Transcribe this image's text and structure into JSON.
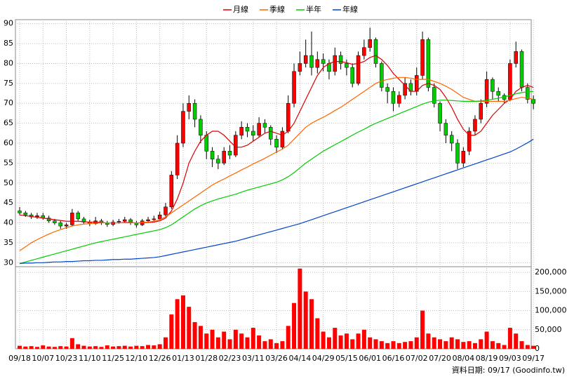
{
  "chart_data": [
    {
      "type": "candlestick",
      "legend": "top",
      "grid": true,
      "up_color": "#ff0000",
      "down_color": "#00cc00",
      "categories": [
        "09/18",
        null,
        null,
        null,
        "10/07",
        null,
        null,
        null,
        "10/23",
        null,
        null,
        null,
        "11/10",
        null,
        null,
        null,
        "11/25",
        null,
        null,
        null,
        "12/10",
        null,
        null,
        null,
        "12/26",
        null,
        null,
        null,
        "01/13",
        null,
        null,
        null,
        "01/28",
        null,
        null,
        null,
        "02/23",
        null,
        null,
        null,
        "03/11",
        null,
        null,
        null,
        "03/26",
        null,
        null,
        null,
        "04/14",
        null,
        null,
        null,
        "04/29",
        null,
        null,
        null,
        "05/15",
        null,
        null,
        null,
        "06/01",
        null,
        null,
        null,
        "06/16",
        null,
        null,
        null,
        "07/02",
        null,
        null,
        null,
        "07/20",
        null,
        null,
        null,
        "08/04",
        null,
        null,
        null,
        "08/19",
        null,
        null,
        null,
        "09/03",
        null,
        null,
        null,
        "09/17"
      ],
      "open": [
        43,
        42.5,
        42,
        41.5,
        41.8,
        41.2,
        40.5,
        40,
        39.2,
        39.5,
        42.5,
        41,
        40.2,
        39.8,
        40.5,
        40,
        39.6,
        40.2,
        40.4,
        40.8,
        40,
        39.5,
        40.5,
        40.8,
        41,
        42,
        44,
        52,
        60,
        68,
        70,
        66,
        62,
        58,
        56,
        55,
        58,
        57,
        62,
        64,
        63,
        62,
        65,
        64,
        61,
        59,
        63,
        70,
        78,
        80,
        82,
        79,
        81,
        80,
        78,
        82,
        80,
        79,
        75,
        82,
        84,
        86,
        80,
        74,
        73,
        70,
        72,
        75,
        73,
        77,
        86,
        74,
        70,
        65,
        62,
        60,
        55,
        58,
        63,
        66,
        70,
        76,
        73,
        72,
        71,
        80,
        83,
        74,
        71
      ],
      "high": [
        44,
        43,
        42.5,
        42.5,
        42.5,
        41.8,
        41,
        40.5,
        40,
        43.5,
        43,
        41.5,
        40.8,
        41.5,
        41,
        40.5,
        40.8,
        41,
        41.5,
        41.2,
        40.5,
        41,
        41.5,
        41.8,
        42.8,
        45,
        53,
        62,
        70,
        72,
        71,
        67,
        63,
        59,
        57,
        59,
        59.5,
        63,
        65.5,
        65,
        64.5,
        66.5,
        66,
        64.5,
        62,
        64,
        72,
        80,
        83,
        86,
        88,
        83,
        82.5,
        81,
        84,
        83,
        81,
        80,
        83,
        86,
        89,
        86.5,
        80.5,
        75,
        74,
        73,
        76.5,
        76,
        79,
        88,
        86.5,
        75,
        70.5,
        66,
        63,
        61,
        59,
        64,
        67,
        71,
        78,
        76.5,
        74,
        72.5,
        81,
        85.5,
        83.5,
        75,
        72
      ],
      "low": [
        42,
        41.5,
        41,
        41,
        40.8,
        40,
        39.5,
        38.5,
        38.5,
        39.2,
        40.5,
        39.8,
        39.2,
        39.5,
        39.5,
        39,
        39.2,
        39.8,
        40,
        39.5,
        38.8,
        39.2,
        40.2,
        40.5,
        40.8,
        41.5,
        43.5,
        51,
        59,
        66,
        64,
        60,
        56,
        54,
        53.5,
        54.5,
        56,
        56.5,
        61,
        61.5,
        60.5,
        61.5,
        62.5,
        59.5,
        57.5,
        58.5,
        62.5,
        69,
        77,
        79,
        77,
        77.5,
        78,
        76,
        77,
        78.5,
        77,
        74,
        74.5,
        81,
        83,
        79,
        73,
        70,
        68,
        69,
        71,
        72,
        72,
        76,
        73,
        69,
        63,
        60,
        58,
        53.5,
        54,
        57,
        62,
        65,
        69,
        71,
        70.5,
        70,
        70.5,
        79,
        73,
        70,
        68.5
      ],
      "close": [
        42.5,
        42,
        41.5,
        41.8,
        41.2,
        40.5,
        40,
        39.2,
        39.5,
        42.5,
        41,
        40.2,
        39.8,
        40.5,
        40,
        39.6,
        40.2,
        40.4,
        40.8,
        40,
        39.5,
        40.5,
        40.8,
        41,
        42,
        44,
        52,
        60,
        68,
        70,
        66,
        62,
        58,
        56,
        55,
        58,
        57,
        62,
        64,
        63,
        62,
        65,
        64,
        61,
        59,
        63,
        70,
        78,
        80,
        82,
        79,
        81,
        80,
        78,
        82,
        80,
        79,
        75,
        82,
        84,
        86,
        80,
        74,
        73,
        70,
        72,
        75,
        73,
        77,
        86,
        74,
        70,
        65,
        62,
        60,
        55,
        58,
        63,
        66,
        70,
        76,
        73,
        72,
        71,
        80,
        83,
        74,
        71,
        70
      ],
      "series": [
        {
          "name": "月線",
          "color": "#dd0000",
          "values": [
            42,
            41.8,
            41.6,
            41.4,
            41.2,
            41,
            40.8,
            40.6,
            40.4,
            40.4,
            40.4,
            40.3,
            40.2,
            40.2,
            40.1,
            40,
            40,
            40,
            40.1,
            40.1,
            40,
            40,
            40.1,
            40.2,
            40.5,
            41.2,
            43,
            46,
            50,
            55,
            58,
            60.5,
            62,
            63,
            63,
            62,
            60.5,
            59,
            59,
            59.5,
            60.5,
            61.5,
            62.5,
            63,
            62.5,
            62,
            63,
            65,
            68,
            71,
            74,
            77,
            79,
            80,
            80.5,
            80.5,
            80.2,
            79.8,
            80,
            80.5,
            81.5,
            82,
            81,
            79.5,
            77.5,
            76,
            74.5,
            73,
            73,
            74.5,
            75,
            74.5,
            73.5,
            71.5,
            69,
            66,
            63.5,
            62,
            62,
            63,
            65,
            67,
            68.5,
            70,
            71,
            73,
            74,
            74.5,
            74
          ]
        },
        {
          "name": "季線",
          "color": "#ff6600",
          "values": [
            33,
            34,
            35,
            35.8,
            36.5,
            37.2,
            37.8,
            38.3,
            38.8,
            39.2,
            39.5,
            39.7,
            39.8,
            39.9,
            40,
            40,
            40,
            40,
            40,
            40,
            40,
            40.1,
            40.2,
            40.4,
            40.8,
            41.5,
            42.5,
            43.5,
            44.5,
            45.5,
            46.5,
            47.5,
            48.5,
            49.5,
            50.3,
            51,
            51.8,
            52.5,
            53.3,
            54,
            54.8,
            55.5,
            56.2,
            57,
            57.8,
            58.5,
            59.5,
            61,
            62.5,
            64,
            65,
            65.8,
            66.5,
            67.3,
            68.2,
            69,
            70,
            71,
            72,
            73,
            74,
            75,
            75.6,
            76,
            76.3,
            76.5,
            76.5,
            76.3,
            76,
            76,
            76,
            75.5,
            75,
            74.3,
            73.5,
            72.5,
            71.5,
            71,
            70.5,
            70.5,
            70.5,
            70.5,
            70.5,
            70.5,
            70.8,
            71.2,
            71.5,
            71.3,
            71
          ]
        },
        {
          "name": "半年",
          "color": "#00cc00",
          "values": [
            29.8,
            30.2,
            30.6,
            31,
            31.4,
            31.8,
            32.2,
            32.6,
            33,
            33.4,
            33.8,
            34.2,
            34.6,
            35,
            35.3,
            35.6,
            35.9,
            36.2,
            36.5,
            36.8,
            37.1,
            37.4,
            37.7,
            38,
            38.3,
            38.8,
            39.5,
            40.5,
            41.5,
            42.5,
            43.5,
            44.3,
            45,
            45.5,
            46,
            46.4,
            46.8,
            47.2,
            47.7,
            48.2,
            48.6,
            49,
            49.4,
            49.8,
            50.2,
            50.8,
            51.6,
            52.6,
            53.8,
            55,
            56,
            57,
            58,
            58.8,
            59.6,
            60.4,
            61.2,
            62,
            62.8,
            63.5,
            64.3,
            65,
            65.6,
            66.2,
            66.8,
            67.4,
            68,
            68.6,
            69.2,
            69.8,
            70.3,
            70.6,
            70.8,
            70.8,
            70.7,
            70.6,
            70.5,
            70.5,
            70.5,
            70.6,
            70.8,
            71,
            71.3,
            71.6,
            72,
            72.4,
            72.7,
            72.9,
            73
          ]
        },
        {
          "name": "年線",
          "color": "#0044cc",
          "values": [
            29.8,
            29.9,
            29.9,
            30,
            30,
            30.1,
            30.2,
            30.2,
            30.3,
            30.3,
            30.4,
            30.5,
            30.5,
            30.6,
            30.6,
            30.7,
            30.8,
            30.8,
            30.9,
            30.9,
            31,
            31.1,
            31.2,
            31.3,
            31.5,
            31.8,
            32.1,
            32.4,
            32.7,
            33,
            33.3,
            33.6,
            33.9,
            34.2,
            34.5,
            34.8,
            35.1,
            35.4,
            35.8,
            36.2,
            36.6,
            37,
            37.4,
            37.8,
            38.2,
            38.6,
            39,
            39.4,
            39.8,
            40.3,
            40.8,
            41.3,
            41.8,
            42.3,
            42.8,
            43.3,
            43.8,
            44.3,
            44.8,
            45.3,
            45.8,
            46.3,
            46.8,
            47.3,
            47.8,
            48.3,
            48.8,
            49.3,
            49.8,
            50.3,
            50.8,
            51.3,
            51.8,
            52.3,
            52.8,
            53.3,
            53.8,
            54.3,
            54.8,
            55.3,
            55.8,
            56.3,
            56.8,
            57.3,
            57.8,
            58.5,
            59.3,
            60.1,
            61
          ]
        }
      ],
      "ylim": [
        29,
        91
      ],
      "yticks": [
        30,
        35,
        40,
        45,
        50,
        55,
        60,
        65,
        70,
        75,
        80,
        85,
        90
      ]
    },
    {
      "type": "bar",
      "color": "#ff0000",
      "grid": true,
      "values": [
        8000,
        6000,
        7000,
        5000,
        9000,
        6000,
        5000,
        7000,
        6000,
        28000,
        12000,
        8000,
        6000,
        7000,
        5000,
        9000,
        6000,
        7000,
        8000,
        6000,
        8000,
        7000,
        10000,
        9000,
        12000,
        30000,
        90000,
        130000,
        140000,
        110000,
        70000,
        60000,
        40000,
        50000,
        30000,
        45000,
        25000,
        50000,
        40000,
        30000,
        55000,
        35000,
        20000,
        25000,
        15000,
        20000,
        60000,
        120000,
        210000,
        150000,
        130000,
        80000,
        45000,
        30000,
        55000,
        35000,
        40000,
        25000,
        40000,
        50000,
        30000,
        25000,
        20000,
        15000,
        20000,
        15000,
        18000,
        20000,
        30000,
        100000,
        40000,
        30000,
        25000,
        20000,
        30000,
        25000,
        18000,
        20000,
        15000,
        25000,
        45000,
        20000,
        15000,
        10000,
        55000,
        40000,
        20000,
        10000,
        8000
      ],
      "ylim": [
        0,
        215000
      ],
      "yticks": [
        0,
        {
          "value": 50000,
          "label": "50,000"
        },
        {
          "value": 100000,
          "label": "100,000"
        },
        {
          "value": 150000,
          "label": "150,000"
        },
        {
          "value": 200000,
          "label": "200,000"
        }
      ]
    }
  ],
  "footer": "資料日期: 09/17 (Goodinfo.tw)"
}
